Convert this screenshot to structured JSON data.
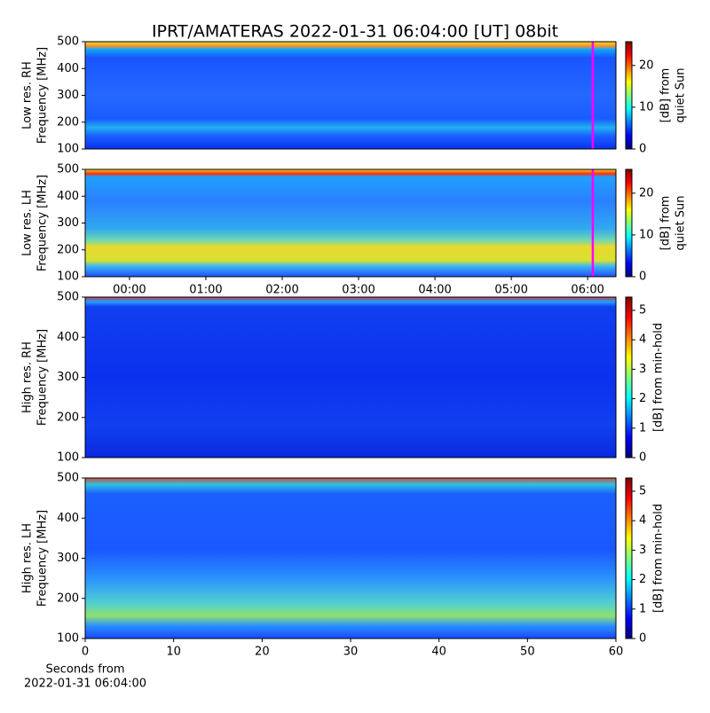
{
  "title": "IPRT/AMATERAS 2022-01-31 06:04:00 [UT]   08bit",
  "chart_data": [
    {
      "type": "spectrogram",
      "ylabel": [
        "Low res. RH",
        "Frequency [MHz]"
      ],
      "ylim": [
        100,
        500
      ],
      "yticks": [
        100,
        200,
        300,
        400,
        500
      ],
      "xlim": [
        -0.58,
        6.37
      ],
      "marker_x": 6.067,
      "marker_color": "#ff00ff",
      "colormap": "jet",
      "colorbar": {
        "label": [
          "[dB] from",
          "quiet Sun"
        ],
        "lim": [
          0,
          25.7
        ],
        "ticks": [
          0,
          10,
          20
        ]
      }
    },
    {
      "type": "spectrogram",
      "ylabel": [
        "Low res. LH",
        "Frequency [MHz]"
      ],
      "ylim": [
        100,
        500
      ],
      "yticks": [
        100,
        200,
        300,
        400,
        500
      ],
      "xlim": [
        -0.58,
        6.37
      ],
      "marker_x": 6.067,
      "marker_color": "#ff00ff",
      "colormap": "jet",
      "xticks": [
        {
          "value": 0,
          "label": "00:00"
        },
        {
          "value": 1,
          "label": "01:00"
        },
        {
          "value": 2,
          "label": "02:00"
        },
        {
          "value": 3,
          "label": "03:00"
        },
        {
          "value": 4,
          "label": "04:00"
        },
        {
          "value": 5,
          "label": "05:00"
        },
        {
          "value": 6,
          "label": "06:00"
        }
      ],
      "colorbar": {
        "label": [
          "[dB] from",
          "quiet Sun"
        ],
        "lim": [
          0,
          25.7
        ],
        "ticks": [
          0,
          10,
          20
        ]
      }
    },
    {
      "type": "spectrogram",
      "ylabel": [
        "High res. RH",
        "Frequency [MHz]"
      ],
      "ylim": [
        100,
        500
      ],
      "yticks": [
        100,
        200,
        300,
        400,
        500
      ],
      "xlim": [
        0,
        60
      ],
      "colormap": "jet",
      "colorbar": {
        "label": [
          "[dB] from min-hold"
        ],
        "lim": [
          0,
          5.45
        ],
        "ticks": [
          0,
          1,
          2,
          3,
          4,
          5
        ]
      }
    },
    {
      "type": "spectrogram",
      "ylabel": [
        "High res. LH",
        "Frequency [MHz]"
      ],
      "ylim": [
        100,
        500
      ],
      "yticks": [
        100,
        200,
        300,
        400,
        500
      ],
      "xlim": [
        0,
        60
      ],
      "xticks": [
        0,
        10,
        20,
        30,
        40,
        50,
        60
      ],
      "xlabel": [
        "Seconds from",
        "2022-01-31 06:04:00"
      ],
      "colormap": "jet",
      "colorbar": {
        "label": [
          "[dB] from min-hold"
        ],
        "lim": [
          0,
          5.45
        ],
        "ticks": [
          0,
          1,
          2,
          3,
          4,
          5
        ]
      }
    }
  ]
}
